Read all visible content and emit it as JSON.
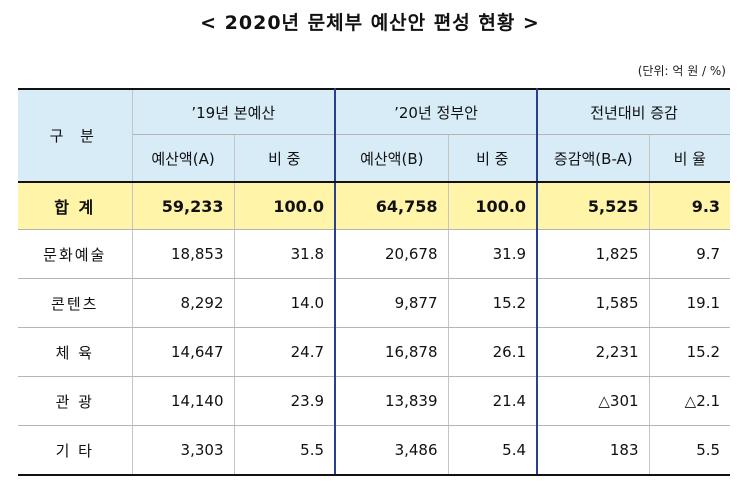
{
  "title": "< 2020년 문체부 예산안 편성 현황 >",
  "unit": "(단위: 억 원 / %)",
  "header": {
    "category": "구    분",
    "group_2019": "’19년 본예산",
    "group_2020": "’20년 정부안",
    "group_change": "전년대비 증감",
    "sub_amount_a": "예산액(A)",
    "sub_ratio_a": "비   중",
    "sub_amount_b": "예산액(B)",
    "sub_ratio_b": "비   중",
    "sub_change": "증감액(B-A)",
    "sub_rate": "비   율"
  },
  "total": {
    "label": "합   계",
    "budget_2019": "59,233",
    "share_2019": "100.0",
    "budget_2020": "64,758",
    "share_2020": "100.0",
    "change": "5,525",
    "rate": "9.3"
  },
  "rows": [
    {
      "label": "문화예술",
      "budget_2019": "18,853",
      "share_2019": "31.8",
      "budget_2020": "20,678",
      "share_2020": "31.9",
      "change": "1,825",
      "rate": "9.7"
    },
    {
      "label": "콘텐츠",
      "budget_2019": "8,292",
      "share_2019": "14.0",
      "budget_2020": "9,877",
      "share_2020": "15.2",
      "change": "1,585",
      "rate": "19.1"
    },
    {
      "label": "체   육",
      "budget_2019": "14,647",
      "share_2019": "24.7",
      "budget_2020": "16,878",
      "share_2020": "26.1",
      "change": "2,231",
      "rate": "15.2"
    },
    {
      "label": "관   광",
      "budget_2019": "14,140",
      "share_2019": "23.9",
      "budget_2020": "13,839",
      "share_2020": "21.4",
      "change": "△301",
      "rate": "△2.1"
    },
    {
      "label": "기   타",
      "budget_2019": "3,303",
      "share_2019": "5.5",
      "budget_2020": "3,486",
      "share_2020": "5.4",
      "change": "183",
      "rate": "5.5"
    }
  ]
}
